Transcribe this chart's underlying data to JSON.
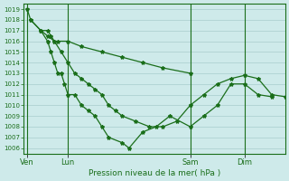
{
  "background_color": "#ceeaea",
  "grid_color": "#a8cccc",
  "line_color": "#1a6e1a",
  "ylabel_text": "Pression niveau de la mer( hPa )",
  "ylim": [
    1005.5,
    1019.5
  ],
  "yticks": [
    1006,
    1007,
    1008,
    1009,
    1010,
    1011,
    1012,
    1013,
    1014,
    1015,
    1016,
    1017,
    1018,
    1019
  ],
  "xtick_labels": [
    "Ven",
    "Lun",
    "Sam",
    "Dim"
  ],
  "xtick_positions": [
    0,
    6,
    24,
    32
  ],
  "xlim": [
    -0.5,
    38
  ],
  "vline_positions": [
    0,
    6,
    24,
    32
  ],
  "series1_x": [
    0,
    0.5,
    2,
    3,
    3.5,
    4,
    4.5,
    6,
    8,
    11,
    14,
    17,
    20,
    24
  ],
  "series1_y": [
    1019,
    1018,
    1017,
    1017,
    1016.5,
    1016,
    1016,
    1016,
    1015.5,
    1015,
    1014.5,
    1014,
    1013.5,
    1013
  ],
  "series2_x": [
    2,
    3,
    3.5,
    4,
    4.5,
    5,
    5.5,
    6,
    7,
    8,
    9,
    10,
    11,
    12,
    14,
    15,
    17,
    19,
    21,
    24,
    26,
    28,
    30,
    32,
    34,
    36
  ],
  "series2_y": [
    1017,
    1016,
    1015,
    1014,
    1013,
    1013,
    1012,
    1011,
    1011,
    1010,
    1009.5,
    1009,
    1008,
    1007,
    1006.5,
    1006,
    1007.5,
    1008,
    1009,
    1008,
    1009,
    1010,
    1012,
    1012,
    1011,
    1010.8
  ],
  "series3_x": [
    0.5,
    2,
    3,
    4,
    5,
    6,
    7,
    8,
    9,
    10,
    11,
    12,
    13,
    14,
    16,
    18,
    20,
    22,
    24,
    26,
    28,
    30,
    32,
    34,
    36,
    38
  ],
  "series3_y": [
    1018,
    1017,
    1016.5,
    1016,
    1015,
    1014,
    1013,
    1012.5,
    1012,
    1011.5,
    1011,
    1010,
    1009.5,
    1009,
    1008.5,
    1008,
    1008,
    1008.5,
    1010,
    1011,
    1012,
    1012.5,
    1012.8,
    1012.5,
    1011,
    1010.8
  ]
}
